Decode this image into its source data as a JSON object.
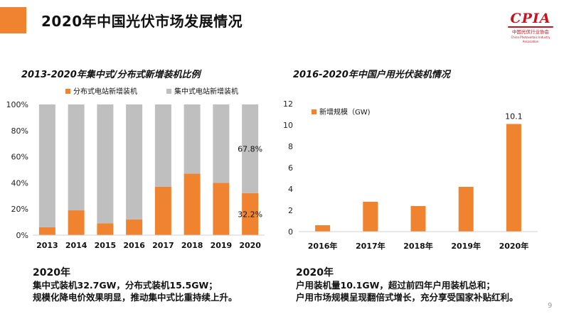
{
  "page_title": "2020年中国光伏市场发展情况",
  "logo": {
    "mark": "CPIA",
    "name_cn": "中国光伏行业协会",
    "name_en": "China Photovoltaic Industry Association",
    "color": "#c8141e"
  },
  "colors": {
    "accent": "#f0832f",
    "gray_bar": "#bfbfbf"
  },
  "chart_data": [
    {
      "type": "bar",
      "stacked": true,
      "percent": true,
      "title": "2013-2020年集中式/分布式新增装机比例",
      "categories": [
        "2013",
        "2014",
        "2015",
        "2016",
        "2017",
        "2018",
        "2019",
        "2020"
      ],
      "series": [
        {
          "name": "分布式电站新增装机",
          "color": "#f0832f",
          "values": [
            6,
            19,
            9,
            12,
            37,
            47,
            40,
            32.2
          ]
        },
        {
          "name": "集中式电站新增装机",
          "color": "#bfbfbf",
          "values": [
            94,
            81,
            91,
            88,
            63,
            53,
            60,
            67.8
          ]
        }
      ],
      "yticks": [
        "0%",
        "20%",
        "40%",
        "60%",
        "80%",
        "100%"
      ],
      "ylim": [
        0,
        100
      ],
      "grid": false,
      "legend": "top",
      "data_labels": [
        {
          "category": "2020",
          "series": "集中式电站新增装机",
          "text": "67.8%"
        },
        {
          "category": "2020",
          "series": "分布式电站新增装机",
          "text": "32.2%"
        }
      ]
    },
    {
      "type": "bar",
      "title": "2016-2020年中国户用光伏装机情况",
      "categories": [
        "2016年",
        "2017年",
        "2018年",
        "2019年",
        "2020年"
      ],
      "series": [
        {
          "name": "新增规模（GW)",
          "color": "#f0832f",
          "values": [
            0.6,
            2.8,
            2.4,
            4.2,
            10.1
          ]
        }
      ],
      "yticks": [
        "0",
        "2",
        "4",
        "6",
        "8",
        "10",
        "12"
      ],
      "ylim": [
        0,
        12
      ],
      "grid": false,
      "legend": "top-left",
      "data_labels": [
        {
          "category": "2020年",
          "text": "10.1"
        }
      ]
    }
  ],
  "notes": {
    "left": {
      "heading": "2020年",
      "line1": "集中式装机32.7GW，分布式装机15.5GW；",
      "line2": "规模化降电价效果明显，推动集中式比重持续上升。"
    },
    "right": {
      "heading": "2020年",
      "line1": "户用装机量10.1GW，超过前四年户用装机总和；",
      "line2": "户用市场规模呈现翻倍式增长，充分享受国家补贴红利。"
    }
  },
  "page_number": "9"
}
